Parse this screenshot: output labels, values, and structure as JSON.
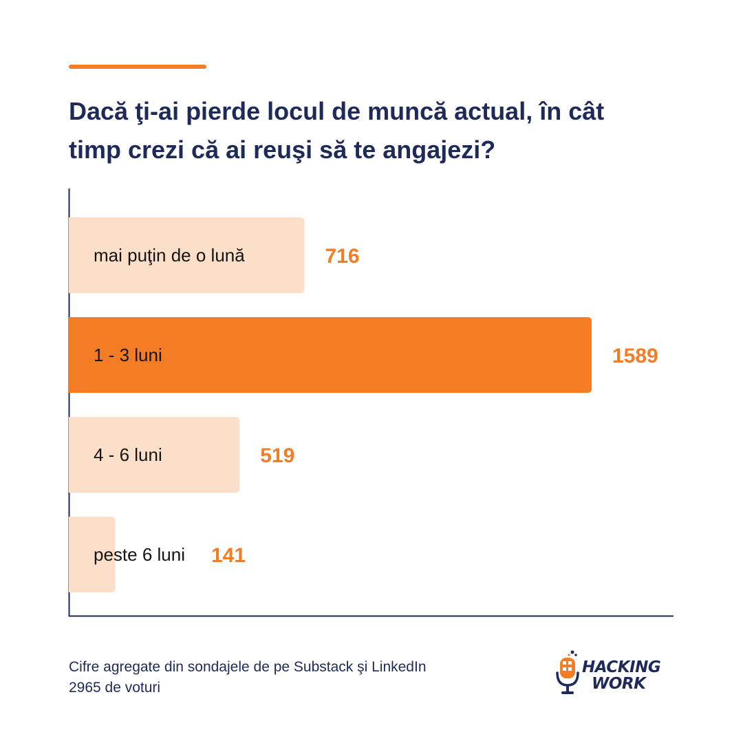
{
  "title": "Dacă ţi-ai pierde locul de muncă actual, în cât timp crezi că ai reuşi să te angajezi?",
  "chart_data": {
    "type": "bar",
    "orientation": "horizontal",
    "categories": [
      "mai puţin de o lună",
      "1 - 3 luni",
      "4 - 6 luni",
      "peste 6 luni"
    ],
    "values": [
      716,
      1589,
      519,
      141
    ],
    "highlight_index": 1,
    "xlim": [
      0,
      1589
    ],
    "grid": false,
    "data_labels": true
  },
  "footer": {
    "line1": "Cifre agregate din sondajele de pe Substack şi LinkedIn",
    "line2": "2965 de voturi"
  },
  "logo": {
    "line1": "HACKING",
    "line2": "WORK",
    "icon": "microphone-icon"
  },
  "colors": {
    "accent": "#f47c25",
    "bar_light": "#fbdfc9",
    "text_dark": "#1e2a5a",
    "axis": "#1e2a5a"
  }
}
